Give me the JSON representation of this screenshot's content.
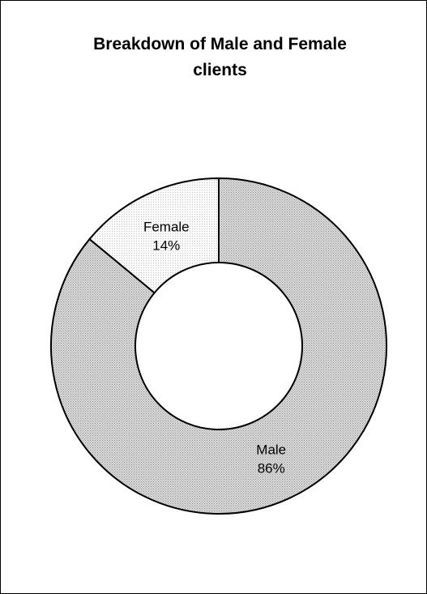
{
  "chart_data": {
    "type": "pie",
    "subtype": "donut",
    "title": "Breakdown of Male and Female clients",
    "categories": [
      "Male",
      "Female"
    ],
    "values": [
      86,
      14
    ],
    "value_labels": [
      "86%",
      "14%"
    ],
    "colors": [
      "#c8c8c8",
      "#f0f0f0"
    ],
    "legend": false
  }
}
